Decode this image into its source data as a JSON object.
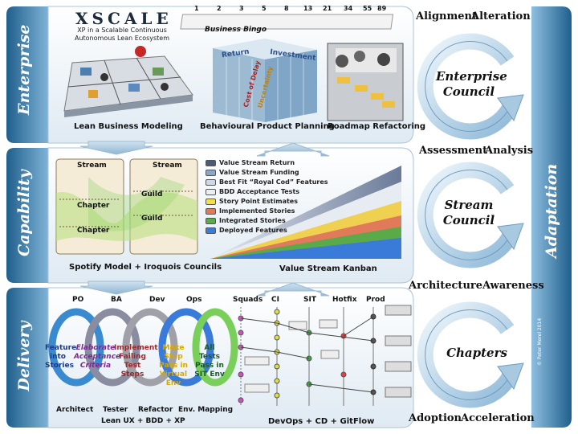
{
  "logo": {
    "text": "XSCALE",
    "tagline_1": "XP in a Scalable Continuous",
    "tagline_2": "Autonomous Lean Ecosystem"
  },
  "phases": {
    "enterprise": "Enterprise",
    "capability": "Capability",
    "delivery": "Delivery",
    "adaptation": "Adaptation"
  },
  "enterprise": {
    "lean_business_modeling": "Lean Business Modeling",
    "behavioural_product_planning": "Behavioural Product Planning",
    "roadmap_refactoring": "Roadmap Refactoring",
    "business_bingo": "Business Bingo",
    "bingo_numbers": [
      "1",
      "2",
      "3",
      "5",
      "8",
      "13",
      "21",
      "34",
      "55",
      "89"
    ],
    "cube_labels": {
      "return": "Return",
      "investment": "Investment",
      "cost_of_delay": "Cost of Delay",
      "uncertainty": "Uncertainty"
    }
  },
  "capability": {
    "spotify_caption": "Spotify Model + Iroquois Councils",
    "stream_1": "Stream",
    "stream_2": "Stream",
    "chapter_1": "Chapter",
    "chapter_2": "Chapter",
    "guild_1": "Guild",
    "guild_2": "Guild",
    "kanban_caption": "Value Stream Kanban",
    "legend": [
      "Value Stream Return",
      "Value Stream Funding",
      "Best Fit “Royal Cod” Features",
      "BDD Acceptance Tests",
      "Story Point Estimates",
      "Implemented Stories",
      "Integrated Stories",
      "Deployed Features"
    ],
    "legend_colors": [
      "#4a5a78",
      "#8aa6c8",
      "#cfd8e6",
      "#e8eef8",
      "#f2e04a",
      "#e07a5a",
      "#5aaa4a",
      "#3a7ad8"
    ]
  },
  "delivery": {
    "roles_top": [
      "PO",
      "BA",
      "Dev",
      "Ops"
    ],
    "roles_bottom": [
      "Architect",
      "Tester",
      "Refactor",
      "Env. Mapping"
    ],
    "steps": [
      "Feature into Stories",
      "Elaborate Acceptance Criteria",
      "Implement Failing Test Steps",
      "Make Step Pass in Virtual Env",
      "All Tests Pass in SIT Env"
    ],
    "loop_caption": "Lean UX + BDD + XP",
    "git_columns": [
      "Squads",
      "CI",
      "SIT",
      "Hotfix",
      "Prod"
    ],
    "git_caption": "DevOps + CD + GitFlow"
  },
  "right": {
    "top_words": [
      "Alignment",
      "Alteration"
    ],
    "mid1_words": [
      "Assessment",
      "Analysis"
    ],
    "mid2_words": [
      "Architecture",
      "Awareness"
    ],
    "bottom_words": [
      "Adoption",
      "Acceleration"
    ],
    "enterprise_council": "Enterprise Council",
    "stream_council": "Stream Council",
    "chapters": "Chapters",
    "copyright": "© Peter Merel 2014"
  }
}
